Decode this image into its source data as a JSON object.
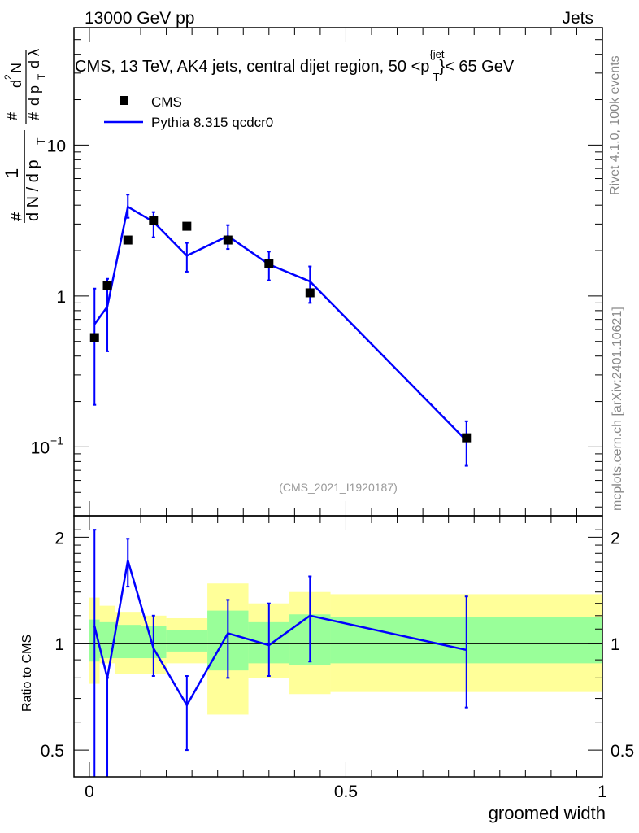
{
  "header": {
    "left": "13000 GeV pp",
    "right": "Jets",
    "rivet": "Rivet 4.1.0,  100k events",
    "mcplots": "mcplots.cern.ch [arXiv:2401.10621]",
    "analysis_id": "(CMS_2021_I1920187)"
  },
  "chart_data": [
    {
      "type": "scatter",
      "panel": "main",
      "title": "CMS, 13 TeV, AK4 jets, central dijet region, 50 <p_T^{jet}< 65 GeV",
      "title_parts": {
        "prefix": "CMS, 13 TeV, AK4 jets, central dijet region, 50 <p",
        "sup": "{jet",
        "sub": "T",
        "suffix": "}< 65 GeV"
      },
      "ylabel": "1/(dN/dp_T) d^2N/(dp_T dλ)",
      "ylabel_parts": {
        "a": "#",
        "b": "1",
        "c": "d N / d p",
        "d": "T",
        "e": "#",
        "f": "d",
        "g": "2",
        "h": "N",
        "i": "d p",
        "j": "T",
        "k": "d λ"
      },
      "xlim": [
        -0.03,
        1.0
      ],
      "ylim": [
        0.035,
        60
      ],
      "yscale": "log",
      "yticks": [
        {
          "value": 10,
          "label": "10"
        },
        {
          "value": 1,
          "label": "1"
        },
        {
          "value": 0.1,
          "label_base": "10",
          "label_exp": "−1"
        }
      ],
      "legend": [
        {
          "name": "CMS",
          "marker": "square",
          "color": "#000000"
        },
        {
          "name": "Pythia 8.315 qcdcr0",
          "marker": "line",
          "color": "#0000ff"
        }
      ],
      "series": [
        {
          "name": "CMS",
          "x": [
            0.01,
            0.035,
            0.075,
            0.125,
            0.19,
            0.27,
            0.35,
            0.43,
            0.735
          ],
          "y": [
            0.53,
            1.17,
            2.35,
            3.15,
            2.9,
            2.35,
            1.65,
            1.05,
            0.115
          ]
        },
        {
          "name": "Pythia 8.315 qcdcr0",
          "x": [
            0.01,
            0.035,
            0.075,
            0.125,
            0.19,
            0.27,
            0.35,
            0.43,
            0.735
          ],
          "y": [
            0.65,
            0.85,
            3.9,
            3.1,
            1.85,
            2.5,
            1.62,
            1.25,
            0.11
          ],
          "err_lo": [
            0.19,
            0.43,
            3.3,
            2.45,
            1.45,
            2.05,
            1.27,
            0.9,
            0.075
          ],
          "err_hi": [
            1.12,
            1.3,
            4.7,
            3.6,
            2.25,
            2.95,
            1.97,
            1.57,
            0.148
          ]
        }
      ]
    },
    {
      "type": "line",
      "panel": "ratio",
      "ylabel": "Ratio to CMS",
      "xlabel": "groomed width",
      "xlim": [
        -0.03,
        1.0
      ],
      "ylim": [
        0.42,
        2.3
      ],
      "yscale": "log",
      "xticks": [
        {
          "value": 0,
          "label": "0"
        },
        {
          "value": 0.5,
          "label": "0.5"
        },
        {
          "value": 1,
          "label": "1"
        }
      ],
      "yticks": [
        {
          "value": 2,
          "label": "2"
        },
        {
          "value": 1,
          "label": "1"
        },
        {
          "value": 0.5,
          "label": "0.5"
        }
      ],
      "reference": 1,
      "bands": {
        "edges": [
          0.0,
          0.02,
          0.05,
          0.1,
          0.15,
          0.23,
          0.31,
          0.39,
          0.47,
          1.0
        ],
        "yellow_lo": [
          0.77,
          0.88,
          0.82,
          0.82,
          0.88,
          0.63,
          0.8,
          0.72,
          0.73
        ],
        "yellow_hi": [
          1.35,
          1.28,
          1.23,
          1.2,
          1.18,
          1.48,
          1.3,
          1.4,
          1.38
        ],
        "green_lo": [
          0.89,
          0.91,
          0.91,
          0.91,
          0.95,
          0.84,
          0.88,
          0.87,
          0.88
        ],
        "green_hi": [
          1.17,
          1.15,
          1.13,
          1.12,
          1.09,
          1.24,
          1.15,
          1.21,
          1.19
        ],
        "yellow_color": "#ffff99",
        "green_color": "#99ff99"
      },
      "series": [
        {
          "name": "Pythia 8.315 qcdcr0",
          "color": "#0000ff",
          "x": [
            0.01,
            0.035,
            0.075,
            0.125,
            0.19,
            0.27,
            0.35,
            0.43,
            0.735
          ],
          "y": [
            1.12,
            0.8,
            1.72,
            0.97,
            0.67,
            1.07,
            0.99,
            1.2,
            0.96
          ],
          "err_lo": [
            0.3,
            0.3,
            1.45,
            0.81,
            0.5,
            0.8,
            0.81,
            0.89,
            0.66
          ],
          "err_hi": [
            2.1,
            0.8,
            1.98,
            1.2,
            0.81,
            1.33,
            1.3,
            1.55,
            1.36
          ]
        }
      ]
    }
  ]
}
